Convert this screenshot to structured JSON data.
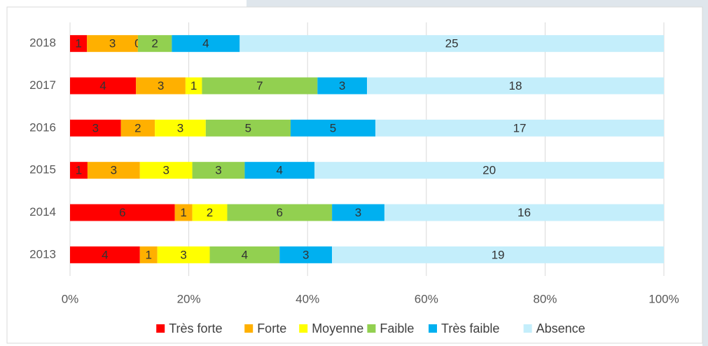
{
  "chart_data": {
    "type": "bar",
    "orientation": "horizontal",
    "stacking": "percent",
    "categories": [
      "2018",
      "2017",
      "2016",
      "2015",
      "2014",
      "2013"
    ],
    "series": [
      {
        "name": "Très forte",
        "color": "#ff0000",
        "values": [
          1,
          4,
          3,
          1,
          6,
          4
        ]
      },
      {
        "name": "Forte",
        "color": "#ffb000",
        "values": [
          3,
          3,
          2,
          3,
          1,
          1
        ]
      },
      {
        "name": "Moyenne",
        "color": "#ffff00",
        "values": [
          0,
          1,
          3,
          3,
          2,
          3
        ]
      },
      {
        "name": "Faible",
        "color": "#92d050",
        "values": [
          2,
          7,
          5,
          3,
          6,
          4
        ]
      },
      {
        "name": "Très faible",
        "color": "#00b0f0",
        "values": [
          4,
          3,
          5,
          4,
          3,
          3
        ]
      },
      {
        "name": "Absence",
        "color": "#c4eefb",
        "values": [
          25,
          18,
          17,
          20,
          16,
          19
        ]
      }
    ],
    "xlim": [
      0,
      100
    ],
    "xticks": [
      {
        "value": 0,
        "label": "0%"
      },
      {
        "value": 20,
        "label": "20%"
      },
      {
        "value": 40,
        "label": "40%"
      },
      {
        "value": 60,
        "label": "60%"
      },
      {
        "value": 80,
        "label": "80%"
      },
      {
        "value": 100,
        "label": "100%"
      }
    ],
    "grid": true,
    "legend": "bottom"
  }
}
